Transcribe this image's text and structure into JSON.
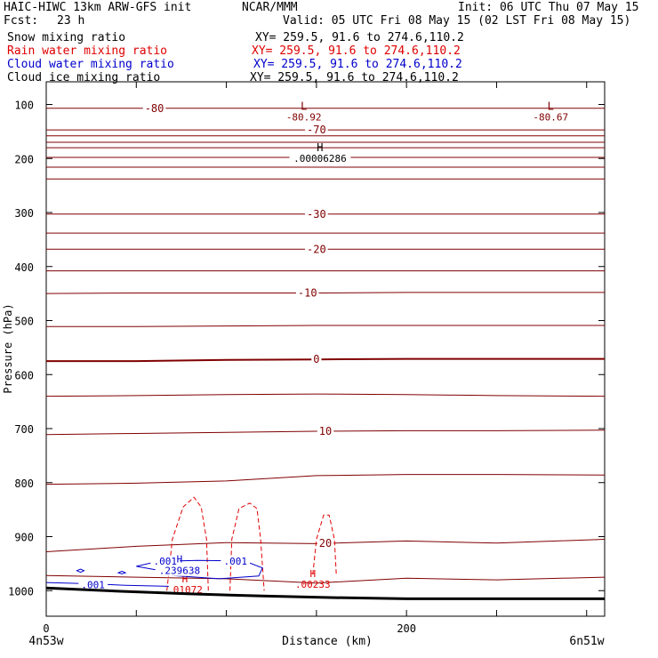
{
  "header": {
    "model": "HAIC-HIWC 13km ARW-GFS init",
    "org": "NCAR/MMM",
    "init": "Init: 06 UTC Thu 07 May 15",
    "fcst_label": "Fcst:",
    "fcst_value": "23 h",
    "valid": "Valid: 05 UTC Fri 08 May 15 (02 LST Fri 08 May 15)",
    "fields": [
      {
        "label": "Snow mixing ratio",
        "xy": "XY= 259.5, 91.6 to 274.6,110.2",
        "color": "#000000"
      },
      {
        "label": "Rain water mixing ratio",
        "xy": "XY= 259.5, 91.6 to 274.6,110.2",
        "color": "#e00000"
      },
      {
        "label": "Cloud water mixing ratio",
        "xy": "XY= 259.5, 91.6 to 274.6,110.2",
        "color": "#0000cc"
      },
      {
        "label": "Cloud ice mixing ratio",
        "xy": "XY= 259.5, 91.6 to 274.6,110.2",
        "color": "#000000"
      }
    ]
  },
  "footer": {
    "left": "4n53w",
    "right": "6n51w"
  },
  "chart_data": {
    "type": "line",
    "xlabel": "Distance (km)",
    "ylabel": "Pressure (hPa)",
    "xlim": [
      0,
      310
    ],
    "ylim": [
      1050,
      50
    ],
    "x_ticks": [
      0,
      200
    ],
    "y_ticks": [
      100,
      200,
      300,
      400,
      500,
      600,
      700,
      800,
      900,
      1000
    ],
    "colors": {
      "temp": "#800000",
      "rain": "#e00000",
      "cloud": "#0000cc",
      "ground": "#000000"
    },
    "temperature_isotherms": [
      {
        "label": "-80",
        "x": [
          0,
          50,
          100,
          150,
          200,
          250,
          310
        ],
        "p": [
          107,
          107,
          107,
          107,
          107,
          107,
          107
        ]
      },
      {
        "label": "-70",
        "x": [
          0,
          50,
          100,
          150,
          200,
          250,
          310
        ],
        "p": [
          147,
          147,
          147,
          147,
          147,
          147,
          147
        ]
      },
      {
        "label": "",
        "x": [
          0,
          50,
          100,
          150,
          200,
          250,
          310
        ],
        "p": [
          158,
          158,
          158,
          158,
          158,
          158,
          158
        ]
      },
      {
        "label": "",
        "x": [
          0,
          50,
          100,
          150,
          200,
          250,
          310
        ],
        "p": [
          170,
          170,
          170,
          170,
          170,
          170,
          170
        ]
      },
      {
        "label": "",
        "x": [
          0,
          50,
          100,
          150,
          200,
          250,
          310
        ],
        "p": [
          180,
          180,
          180,
          180,
          180,
          180,
          180
        ]
      },
      {
        "label": "",
        "x": [
          0,
          50,
          100,
          150,
          200,
          250,
          310
        ],
        "p": [
          198,
          198,
          198,
          198,
          198,
          198,
          198
        ]
      },
      {
        "label": "",
        "x": [
          0,
          50,
          100,
          150,
          200,
          250,
          310
        ],
        "p": [
          216,
          216,
          216,
          216,
          216,
          216,
          216
        ]
      },
      {
        "label": "",
        "x": [
          0,
          50,
          100,
          150,
          200,
          250,
          310
        ],
        "p": [
          238,
          238,
          238,
          238,
          238,
          238,
          238
        ]
      },
      {
        "label": "-30",
        "x": [
          0,
          50,
          100,
          150,
          200,
          250,
          310
        ],
        "p": [
          303,
          303,
          303,
          303,
          303,
          303,
          303
        ]
      },
      {
        "label": "",
        "x": [
          0,
          50,
          100,
          150,
          200,
          250,
          310
        ],
        "p": [
          338,
          338,
          338,
          338,
          338,
          338,
          338
        ]
      },
      {
        "label": "-20",
        "x": [
          0,
          50,
          100,
          150,
          200,
          250,
          310
        ],
        "p": [
          368,
          368,
          368,
          368,
          368,
          368,
          368
        ]
      },
      {
        "label": "",
        "x": [
          0,
          50,
          100,
          150,
          200,
          250,
          310
        ],
        "p": [
          408,
          408,
          408,
          408,
          408,
          408,
          408
        ]
      },
      {
        "label": "-10",
        "x": [
          0,
          50,
          100,
          150,
          200,
          250,
          310
        ],
        "p": [
          450,
          449,
          449,
          449,
          448,
          448,
          448
        ]
      },
      {
        "label": "",
        "x": [
          0,
          50,
          100,
          150,
          200,
          250,
          310
        ],
        "p": [
          511,
          511,
          510,
          509,
          509,
          509,
          509
        ]
      },
      {
        "label": "0",
        "x": [
          0,
          50,
          100,
          150,
          200,
          250,
          310
        ],
        "p": [
          575,
          575,
          573,
          572,
          571,
          571,
          571
        ]
      },
      {
        "label": "",
        "x": [
          0,
          50,
          100,
          150,
          200,
          250,
          310
        ],
        "p": [
          640,
          639,
          637,
          636,
          637,
          639,
          640
        ]
      },
      {
        "label": "10",
        "x": [
          0,
          50,
          100,
          150,
          200,
          250,
          310
        ],
        "p": [
          711,
          709,
          707,
          705,
          704,
          704,
          703
        ]
      },
      {
        "label": "",
        "x": [
          0,
          50,
          100,
          150,
          200,
          250,
          310
        ],
        "p": [
          803,
          801,
          797,
          787,
          785,
          785,
          786
        ]
      },
      {
        "label": "20",
        "x": [
          0,
          50,
          100,
          150,
          200,
          250,
          310
        ],
        "p": [
          928,
          918,
          911,
          913,
          908,
          912,
          905
        ]
      },
      {
        "label": "",
        "x": [
          0,
          50,
          100,
          150,
          200,
          250,
          310
        ],
        "p": [
          972,
          975,
          978,
          986,
          977,
          980,
          975
        ]
      }
    ],
    "extrema": [
      {
        "type": "L",
        "value": "-80.92",
        "x": 143,
        "p": 92
      },
      {
        "type": "L",
        "value": "-80.67",
        "x": 280,
        "p": 92
      },
      {
        "type": "H",
        "value": ".00006286",
        "x": 152,
        "p": 168
      }
    ],
    "rain_water": {
      "contours": [
        {
          "x": [
            67,
            70,
            76,
            82,
            86,
            89,
            90
          ],
          "p": [
            1000,
            905,
            845,
            827,
            845,
            905,
            1000
          ]
        },
        {
          "x": [
            102,
            103,
            107,
            113,
            117,
            119,
            121
          ],
          "p": [
            1000,
            905,
            848,
            838,
            848,
            905,
            1000
          ]
        },
        {
          "x": [
            148,
            150,
            154,
            157,
            160,
            161
          ],
          "p": [
            970,
            905,
            860,
            860,
            905,
            970
          ]
        }
      ],
      "maxima": [
        {
          "label": "H",
          "value": ".01072",
          "x": 77,
          "p": 998
        },
        {
          "label": "H",
          "value": ".00233",
          "x": 148,
          "p": 988
        }
      ]
    },
    "cloud_water": {
      "contours": [
        {
          "x": [
            17,
            19,
            21,
            19,
            17
          ],
          "p": [
            963,
            960,
            963,
            966,
            963
          ]
        },
        {
          "x": [
            40,
            42,
            44,
            42,
            40
          ],
          "p": [
            967,
            964,
            967,
            969,
            967
          ]
        },
        {
          "x": [
            0,
            22,
            44,
            68
          ],
          "p": [
            985,
            987,
            990,
            992
          ]
        },
        {
          "x": [
            50,
            62,
            84,
            110,
            120,
            118,
            96,
            70,
            62,
            50
          ],
          "p": [
            955,
            946,
            944,
            945,
            958,
            973,
            978,
            972,
            962,
            955
          ]
        }
      ],
      "contour_labels": [
        ".001",
        ".001",
        ".001"
      ],
      "maxima": [
        {
          "label": "H",
          "value": ".239638",
          "x": 74,
          "p": 958
        }
      ]
    },
    "ground": {
      "x": [
        0,
        40,
        80,
        120,
        160,
        200,
        240,
        280,
        310
      ],
      "p": [
        995,
        1001,
        1006,
        1010,
        1013,
        1015,
        1015,
        1015,
        1015
      ]
    }
  }
}
